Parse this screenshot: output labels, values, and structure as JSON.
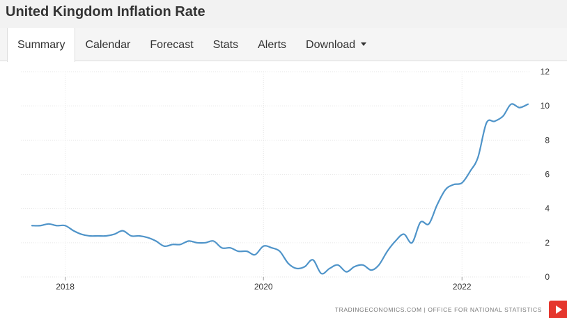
{
  "header": {
    "title": "United Kingdom Inflation Rate"
  },
  "tabs": [
    {
      "label": "Summary",
      "active": true
    },
    {
      "label": "Calendar",
      "active": false
    },
    {
      "label": "Forecast",
      "active": false
    },
    {
      "label": "Stats",
      "active": false
    },
    {
      "label": "Alerts",
      "active": false
    },
    {
      "label": "Download",
      "active": false,
      "dropdown": true
    }
  ],
  "source": "TRADINGECONOMICS.COM  |  OFFICE FOR NATIONAL STATISTICS",
  "play_button": {
    "icon": "play-icon",
    "color": "#e5362d"
  },
  "chart_data": {
    "type": "line",
    "title": "",
    "xlabel": "",
    "ylabel": "",
    "ylim": [
      0,
      12
    ],
    "yticks": [
      "0",
      "2",
      "4",
      "6",
      "8",
      "10",
      "12"
    ],
    "xticks": [
      "2018",
      "2020",
      "2022"
    ],
    "grid": true,
    "line_color": "#4f94c9",
    "series": [
      {
        "x": [
          "2017-09",
          "2017-10",
          "2017-11",
          "2017-12",
          "2018-01",
          "2018-02",
          "2018-03",
          "2018-04",
          "2018-05",
          "2018-06",
          "2018-07",
          "2018-08",
          "2018-09",
          "2018-10",
          "2018-11",
          "2018-12",
          "2019-01",
          "2019-02",
          "2019-03",
          "2019-04",
          "2019-05",
          "2019-06",
          "2019-07",
          "2019-08",
          "2019-09",
          "2019-10",
          "2019-11",
          "2019-12",
          "2020-01",
          "2020-02",
          "2020-03",
          "2020-04",
          "2020-05",
          "2020-06",
          "2020-07",
          "2020-08",
          "2020-09",
          "2020-10",
          "2020-11",
          "2020-12",
          "2021-01",
          "2021-02",
          "2021-03",
          "2021-04",
          "2021-05",
          "2021-06",
          "2021-07",
          "2021-08",
          "2021-09",
          "2021-10",
          "2021-11",
          "2021-12",
          "2022-01",
          "2022-02",
          "2022-03",
          "2022-04",
          "2022-05",
          "2022-06",
          "2022-07",
          "2022-08",
          "2022-09"
        ],
        "values": [
          3.0,
          3.0,
          3.1,
          3.0,
          3.0,
          2.7,
          2.5,
          2.4,
          2.4,
          2.4,
          2.5,
          2.7,
          2.4,
          2.4,
          2.3,
          2.1,
          1.8,
          1.9,
          1.9,
          2.1,
          2.0,
          2.0,
          2.1,
          1.7,
          1.7,
          1.5,
          1.5,
          1.3,
          1.8,
          1.7,
          1.5,
          0.8,
          0.5,
          0.6,
          1.0,
          0.2,
          0.5,
          0.7,
          0.3,
          0.6,
          0.7,
          0.4,
          0.7,
          1.5,
          2.1,
          2.5,
          2.0,
          3.2,
          3.1,
          4.2,
          5.1,
          5.4,
          5.5,
          6.2,
          7.0,
          9.0,
          9.1,
          9.4,
          10.1,
          9.9,
          10.1
        ]
      }
    ]
  }
}
